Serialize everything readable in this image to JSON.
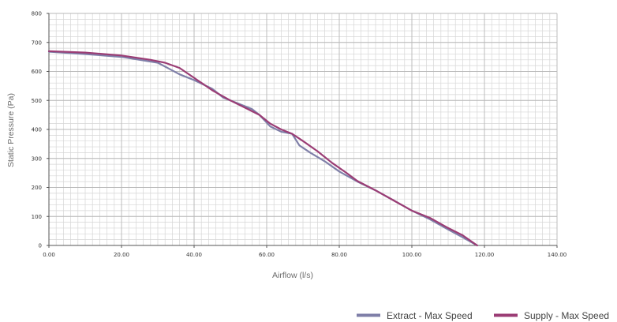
{
  "chart_data": {
    "type": "line",
    "title": "",
    "xlabel": "Airflow (l/s)",
    "ylabel": "Static Pressure (Pa)",
    "xlim": [
      0,
      140
    ],
    "ylim": [
      0,
      800
    ],
    "x_ticks": [
      "0.00",
      "20.00",
      "40.00",
      "60.00",
      "80.00",
      "100.00",
      "120.00",
      "140.00"
    ],
    "y_ticks": [
      "0",
      "100",
      "200",
      "300",
      "400",
      "500",
      "600",
      "700",
      "800"
    ],
    "x_tick_values": [
      0,
      20,
      40,
      60,
      80,
      100,
      120,
      140
    ],
    "y_tick_values": [
      0,
      100,
      200,
      300,
      400,
      500,
      600,
      700,
      800
    ],
    "x_minor_step": 2,
    "y_minor_step": 20,
    "grid": true,
    "legend_position": "bottom-right",
    "series": [
      {
        "name": "Extract - Max Speed",
        "color": "#7f7fa8",
        "x": [
          0,
          10,
          20,
          30,
          33,
          36,
          40,
          45,
          48,
          52,
          56,
          58,
          61,
          64,
          67,
          69,
          72,
          76,
          80,
          85,
          90,
          95,
          100,
          105,
          110,
          114,
          118
        ],
        "y": [
          668,
          660,
          650,
          630,
          610,
          590,
          570,
          540,
          510,
          490,
          470,
          450,
          410,
          392,
          385,
          345,
          320,
          290,
          255,
          220,
          190,
          155,
          120,
          90,
          55,
          28,
          0
        ]
      },
      {
        "name": "Supply - Max Speed",
        "color": "#9b3d75",
        "x": [
          0,
          10,
          20,
          28,
          32,
          36,
          40,
          45,
          50,
          54,
          58,
          61,
          64,
          67,
          70,
          74,
          78,
          82,
          85,
          90,
          95,
          100,
          105,
          110,
          114,
          118
        ],
        "y": [
          670,
          665,
          655,
          640,
          630,
          612,
          578,
          535,
          500,
          475,
          450,
          420,
          400,
          385,
          360,
          325,
          285,
          250,
          222,
          190,
          155,
          120,
          95,
          60,
          35,
          0
        ]
      }
    ]
  }
}
